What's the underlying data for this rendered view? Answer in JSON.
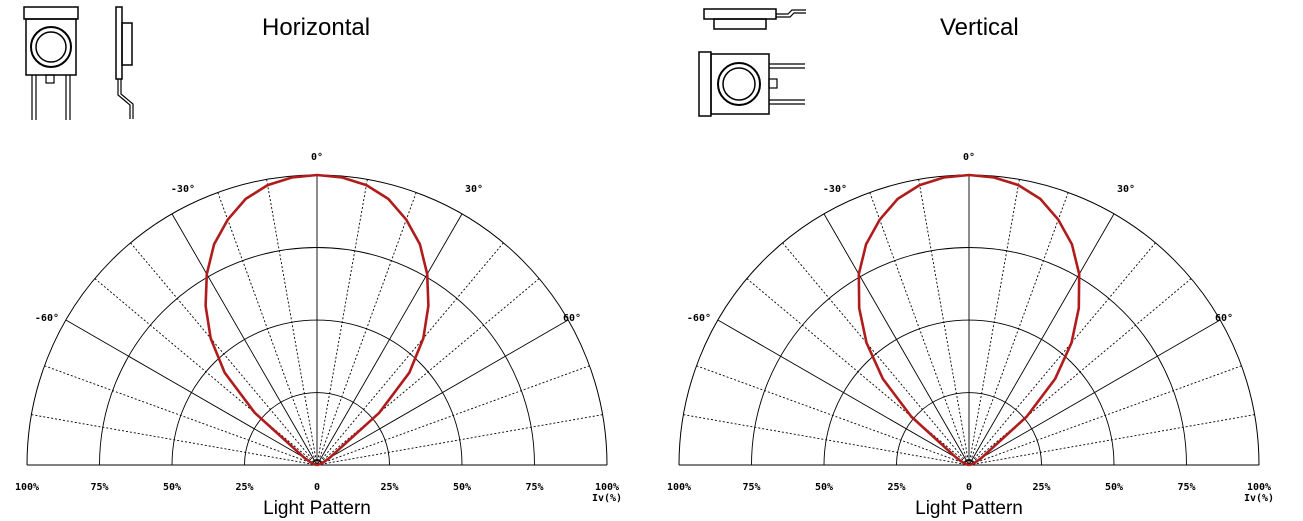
{
  "chart_data": [
    {
      "type": "polar",
      "title": "Horizontal",
      "caption": "Light Pattern",
      "radial_axis_label": "Iv(%)",
      "angle_labels": [
        "0°",
        "30°",
        "-30°",
        "60°",
        "-60°"
      ],
      "radial_tick_labels_left": [
        "100%",
        "75%",
        "50%",
        "25%"
      ],
      "radial_tick_labels_right": [
        "0",
        "25%",
        "50%",
        "75%",
        "100%"
      ],
      "angle_range": [
        -90,
        90
      ],
      "radial_range": [
        0,
        100
      ],
      "series": [
        {
          "color": "#b01c1c",
          "angle_deg": [
            -90,
            -80,
            -70,
            -60,
            -50,
            -45,
            -40,
            -35,
            -30,
            -25,
            -20,
            -15,
            -10,
            -5,
            0,
            5,
            10,
            15,
            20,
            25,
            30,
            35,
            40,
            45,
            50,
            60,
            70,
            80,
            90
          ],
          "intensity_pct": [
            0,
            0.5,
            2,
            5,
            28,
            45,
            57,
            67,
            76,
            84,
            90,
            95,
            98,
            99.5,
            100,
            99.5,
            98,
            95,
            90,
            84,
            76,
            67,
            57,
            45,
            28,
            5,
            2,
            0.5,
            0
          ]
        }
      ]
    },
    {
      "type": "polar",
      "title": "Vertical",
      "caption": "Light Pattern",
      "radial_axis_label": "Iv(%)",
      "angle_labels": [
        "0°",
        "30°",
        "-30°",
        "60°",
        "-60°"
      ],
      "radial_tick_labels_left": [
        "100%",
        "75%",
        "50%",
        "25%"
      ],
      "radial_tick_labels_right": [
        "0",
        "25%",
        "50%",
        "75%",
        "100%"
      ],
      "angle_range": [
        -90,
        90
      ],
      "radial_range": [
        0,
        100
      ],
      "series": [
        {
          "color": "#b01c1c",
          "angle_deg": [
            -90,
            -80,
            -70,
            -60,
            -50,
            -45,
            -40,
            -35,
            -30,
            -25,
            -20,
            -15,
            -10,
            -5,
            0,
            5,
            10,
            15,
            20,
            25,
            30,
            35,
            40,
            45,
            50,
            60,
            70,
            80,
            90
          ],
          "intensity_pct": [
            0,
            0.5,
            2,
            5,
            26,
            42,
            55,
            66,
            76,
            84,
            90,
            95,
            98,
            99.5,
            100,
            99.5,
            98,
            95,
            90,
            84,
            76,
            66,
            55,
            42,
            26,
            5,
            2,
            0.5,
            0
          ]
        }
      ]
    }
  ]
}
